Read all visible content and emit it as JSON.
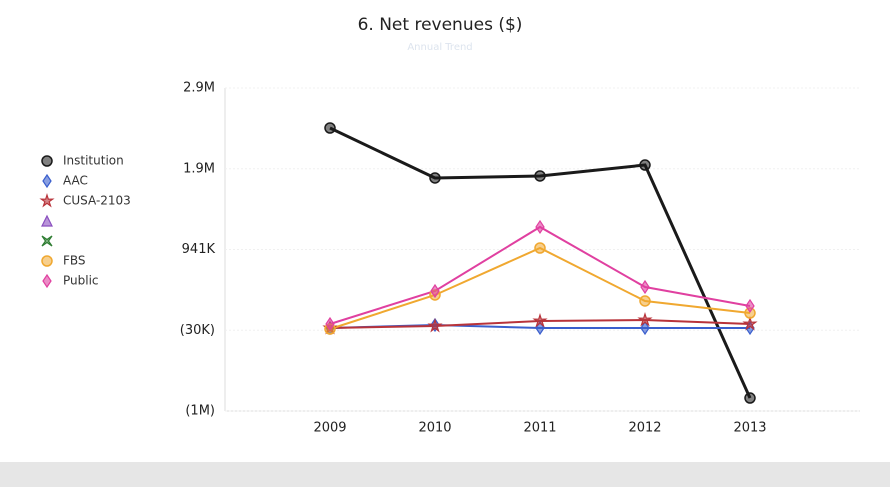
{
  "chart_data": {
    "type": "line",
    "title": "6. Net revenues ($)",
    "subtitle": "Annual Trend",
    "categories": [
      "2009",
      "2010",
      "2011",
      "2012",
      "2013"
    ],
    "ylim": [
      -1001000,
      2883000
    ],
    "yticks": [
      {
        "value": -1001000,
        "label": "(1M)"
      },
      {
        "value": -30000,
        "label": "(30K)"
      },
      {
        "value": 941000,
        "label": "941K"
      },
      {
        "value": 1912000,
        "label": "1.9M"
      },
      {
        "value": 2883000,
        "label": "2.9M"
      }
    ],
    "grid": true,
    "legend": "left",
    "series": [
      {
        "name": "Institution",
        "color": "#1a1a1a",
        "marker": "circle",
        "values": [
          2402000,
          1801000,
          1825000,
          1957000,
          -845000
        ]
      },
      {
        "name": "AAC",
        "color": "#3a5fcd",
        "marker": "diamond",
        "values": [
          -3000,
          33000,
          -3000,
          -3000,
          -3000
        ]
      },
      {
        "name": "CUSA-2103",
        "color": "#b8333a",
        "marker": "star",
        "values": [
          -3000,
          21000,
          81000,
          93000,
          45000
        ]
      },
      {
        "name": null,
        "color": "#8a4fbf",
        "marker": "triangle",
        "values": [
          null,
          null,
          null,
          null,
          null
        ]
      },
      {
        "name": null,
        "color": "#2e7d32",
        "marker": "x",
        "values": [
          null,
          null,
          null,
          null,
          null
        ]
      },
      {
        "name": "FBS",
        "color": "#f0a830",
        "marker": "circle",
        "values": [
          -15000,
          394000,
          959000,
          322000,
          177000
        ]
      },
      {
        "name": "Public",
        "color": "#e040a0",
        "marker": "diamond",
        "values": [
          45000,
          442000,
          1212000,
          490000,
          262000
        ]
      }
    ]
  }
}
